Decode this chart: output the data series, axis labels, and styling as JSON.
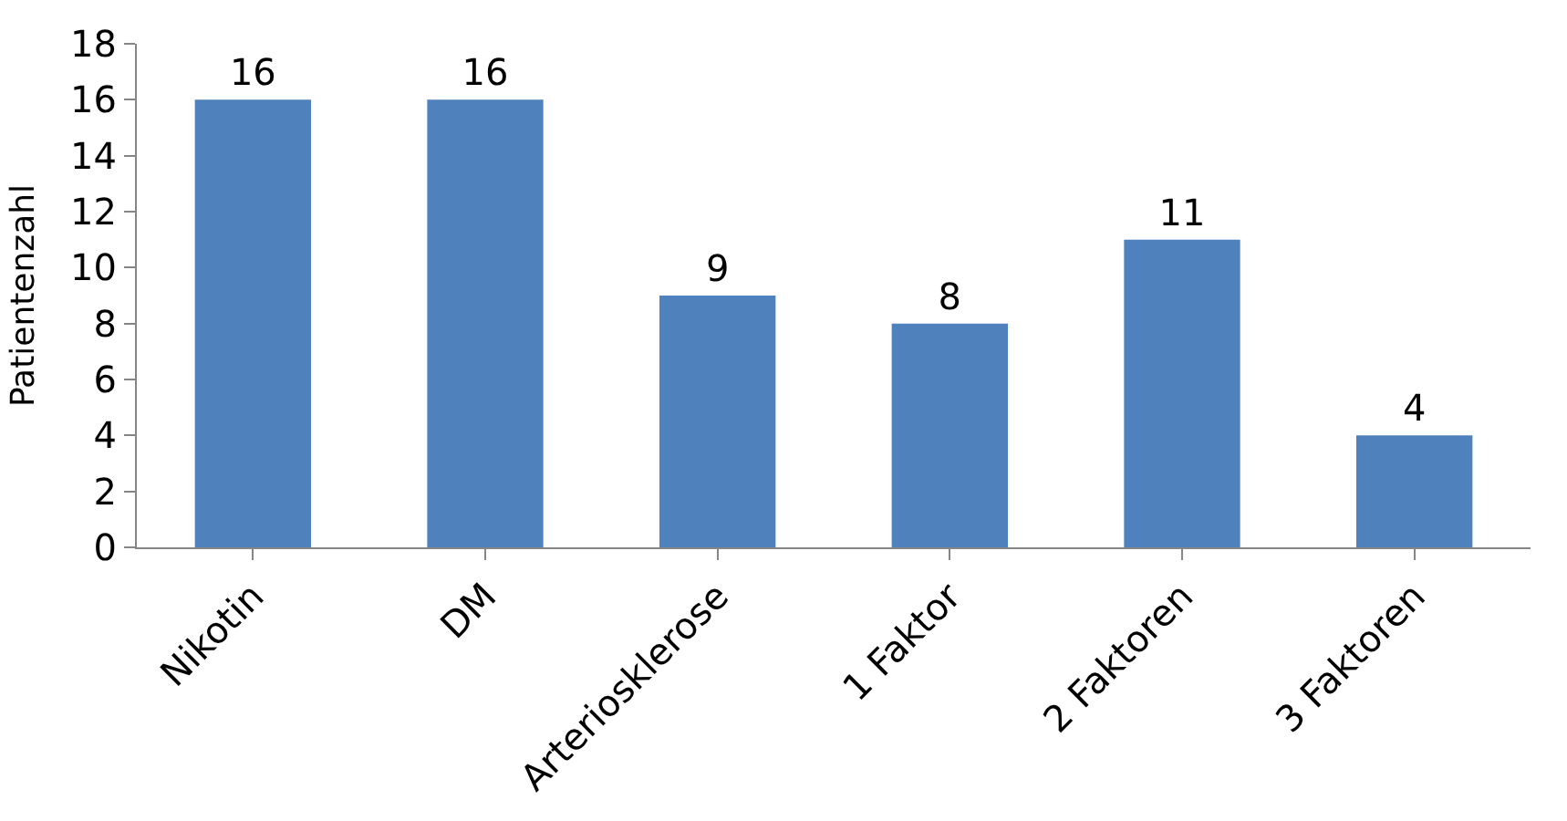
{
  "chart_data": {
    "type": "bar",
    "ylabel": "Patientenzahl",
    "categories": [
      "Nikotin",
      "DM",
      "Arteriosklerose",
      "1 Faktor",
      "2 Faktoren",
      "3 Faktoren"
    ],
    "values": [
      16,
      16,
      9,
      8,
      11,
      4
    ],
    "color": "#4f81bd",
    "ylim": [
      0,
      18
    ],
    "yticks": [
      0,
      2,
      4,
      6,
      8,
      10,
      12,
      14,
      16,
      18
    ],
    "data_labels": true
  }
}
